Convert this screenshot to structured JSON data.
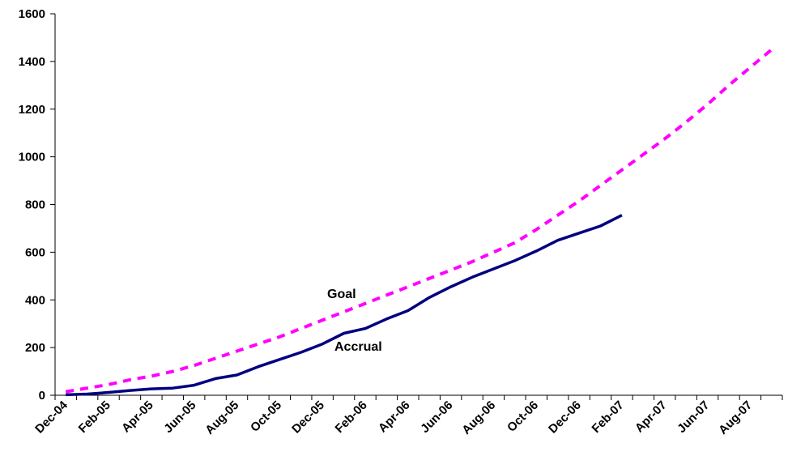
{
  "chart_data": {
    "type": "line",
    "title": "",
    "xlabel": "",
    "ylabel": "",
    "ylim": [
      0,
      1600
    ],
    "yticks": [
      0,
      200,
      400,
      600,
      800,
      1000,
      1200,
      1400,
      1600
    ],
    "x_tick_labels": [
      "Dec-04",
      "Feb-05",
      "Apr-05",
      "Jun-05",
      "Aug-05",
      "Oct-05",
      "Dec-05",
      "Feb-06",
      "Apr-06",
      "Jun-06",
      "Aug-06",
      "Oct-06",
      "Dec-06",
      "Feb-07",
      "Apr-07",
      "Jun-07",
      "Aug-07"
    ],
    "grid": false,
    "legend": "none",
    "annotations": {
      "goal_label": "Goal",
      "accrual_label": "Accrual"
    },
    "series": [
      {
        "name": "Goal",
        "color": "#ff00ff",
        "style": "dashed",
        "x": [
          "Dec-04",
          "Jan-05",
          "Feb-05",
          "Mar-05",
          "Apr-05",
          "May-05",
          "Jun-05",
          "Jul-05",
          "Aug-05",
          "Sep-05",
          "Oct-05",
          "Nov-05",
          "Dec-05",
          "Jan-06",
          "Feb-06",
          "Mar-06",
          "Apr-06",
          "May-06",
          "Jun-06",
          "Jul-06",
          "Aug-06",
          "Sep-06",
          "Oct-06",
          "Nov-06",
          "Dec-06",
          "Jan-07",
          "Feb-07",
          "Mar-07",
          "Apr-07",
          "May-07",
          "Jun-07",
          "Jul-07",
          "Aug-07",
          "Sep-07"
        ],
        "values": [
          15,
          30,
          45,
          65,
          80,
          100,
          125,
          155,
          185,
          215,
          245,
          280,
          315,
          350,
          385,
          420,
          455,
          490,
          525,
          560,
          600,
          640,
          695,
          755,
          815,
          880,
          945,
          1010,
          1075,
          1145,
          1220,
          1300,
          1375,
          1450
        ]
      },
      {
        "name": "Accrual",
        "color": "#000080",
        "style": "solid",
        "x": [
          "Dec-04",
          "Jan-05",
          "Feb-05",
          "Mar-05",
          "Apr-05",
          "May-05",
          "Jun-05",
          "Jul-05",
          "Aug-05",
          "Sep-05",
          "Oct-05",
          "Nov-05",
          "Dec-05",
          "Jan-06",
          "Feb-06",
          "Mar-06",
          "Apr-06",
          "May-06",
          "Jun-06",
          "Jul-06",
          "Aug-06",
          "Sep-06",
          "Oct-06",
          "Nov-06",
          "Dec-06",
          "Jan-07",
          "Feb-07"
        ],
        "values": [
          2,
          5,
          12,
          20,
          27,
          30,
          42,
          70,
          85,
          120,
          150,
          180,
          215,
          260,
          280,
          320,
          355,
          410,
          455,
          495,
          530,
          565,
          605,
          650,
          680,
          710,
          755
        ]
      }
    ]
  }
}
